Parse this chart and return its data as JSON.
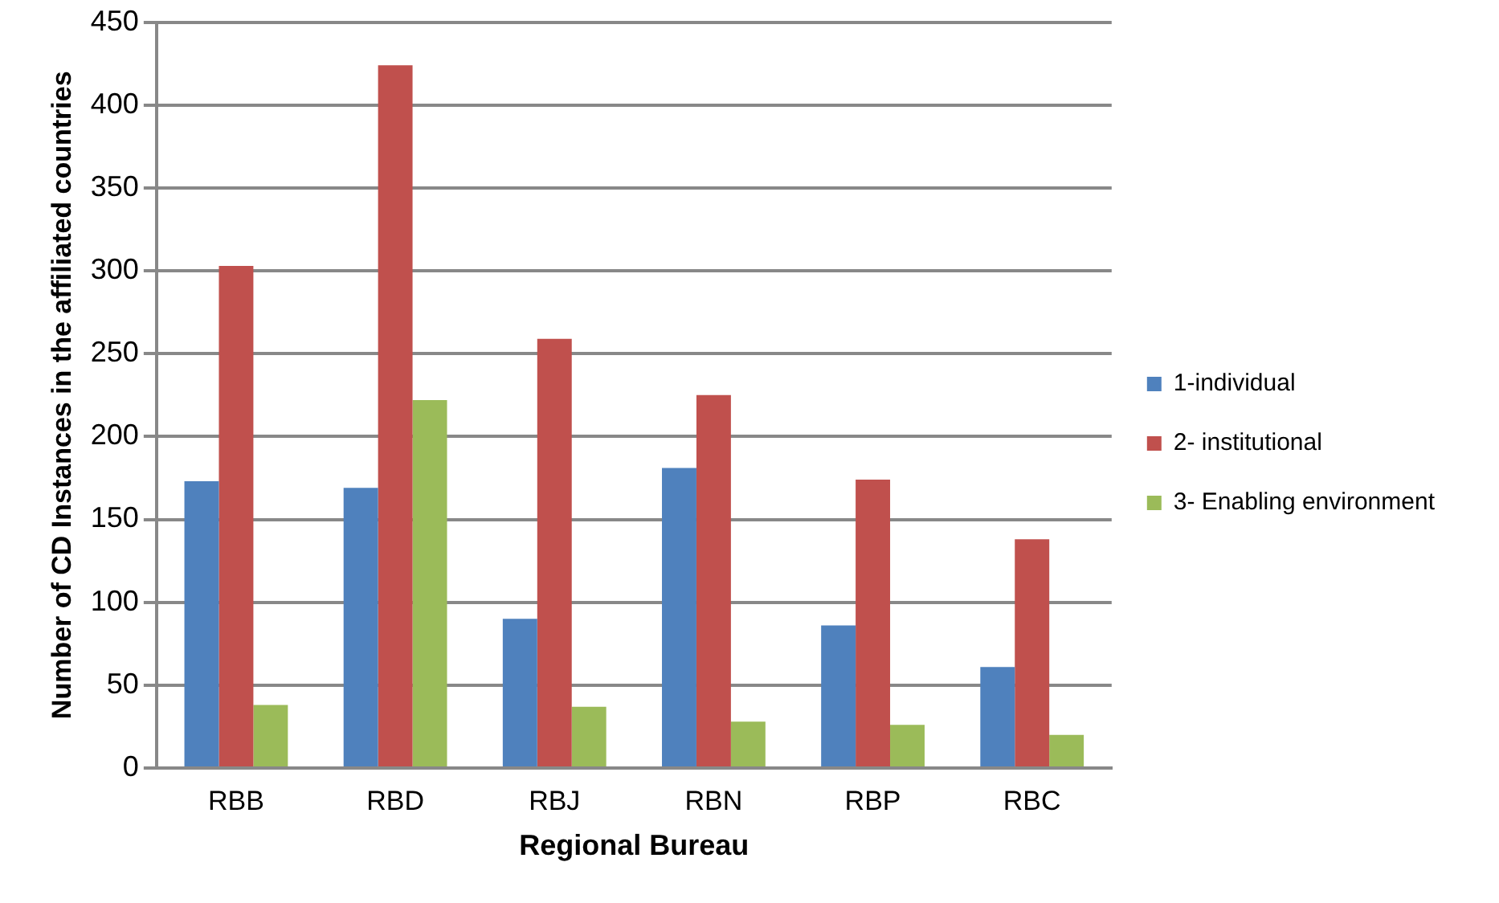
{
  "chart_data": {
    "type": "bar",
    "xlabel": "Regional Bureau",
    "ylabel": "Number of CD Instances in the affiliated countries",
    "categories": [
      "RBB",
      "RBD",
      "RBJ",
      "RBN",
      "RBP",
      "RBC"
    ],
    "series": [
      {
        "name": "1-individual",
        "color": "#4f81bd",
        "values": [
          173,
          169,
          90,
          181,
          86,
          61
        ]
      },
      {
        "name": "2- institutional",
        "color": "#c0504d",
        "values": [
          303,
          424,
          259,
          225,
          174,
          138
        ]
      },
      {
        "name": "3- Enabling environment",
        "color": "#9bbb59",
        "values": [
          38,
          222,
          37,
          28,
          26,
          20
        ]
      }
    ],
    "ylim": [
      0,
      450
    ],
    "yticks": [
      0,
      50,
      100,
      150,
      200,
      250,
      300,
      350,
      400,
      450
    ],
    "grid": "y",
    "legend": "right"
  }
}
